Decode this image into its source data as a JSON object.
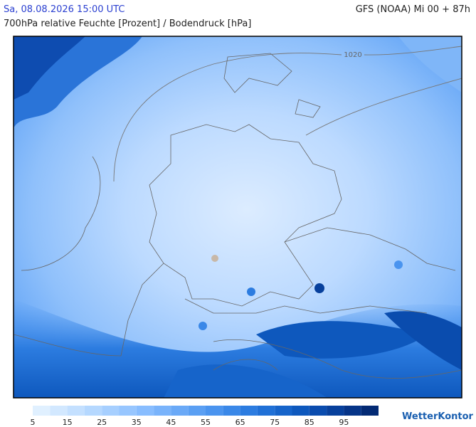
{
  "header": {
    "datetime": "Sa, 08.08.2026 15:00 UTC",
    "model": "GFS (NOAA) Mi 00 + 87h",
    "subtitle": "700hPa relative Feuchte [Prozent] / Bodendruck [hPa]"
  },
  "map": {
    "isobar_label": "1020"
  },
  "legend": {
    "ticks": [
      5,
      15,
      25,
      35,
      45,
      55,
      65,
      75,
      85,
      95
    ],
    "colors": [
      "#e0f0ff",
      "#d2e8ff",
      "#c4e0ff",
      "#b5d8ff",
      "#a6cfff",
      "#97c6ff",
      "#88bdff",
      "#79b3fb",
      "#6aa9f7",
      "#5a9ff3",
      "#4a94ef",
      "#3a88e8",
      "#2c7ce0",
      "#2070d6",
      "#1664ca",
      "#0e58bd",
      "#0a4cae",
      "#07409c",
      "#053488",
      "#032a74"
    ]
  },
  "brand": "WetterKontor"
}
